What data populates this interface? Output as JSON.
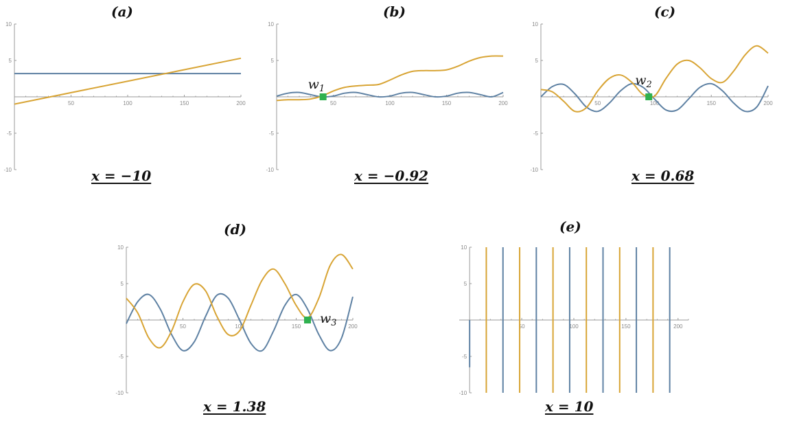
{
  "colors": {
    "blue": "#5e81a3",
    "orange": "#d8a434",
    "marker": "#2fb14f",
    "axis": "#9a9a9a"
  },
  "chart_data": [
    {
      "id": "a",
      "type": "line",
      "title": "(a)",
      "caption": "x = −10",
      "xlim": [
        0,
        200
      ],
      "ylim": [
        -10,
        10
      ],
      "xticks": [
        50,
        100,
        150,
        200
      ],
      "yticks": [
        -10,
        -5,
        5,
        10
      ],
      "series": [
        {
          "color": "blue",
          "x": [
            0,
            200
          ],
          "y": [
            3.2,
            3.2
          ]
        },
        {
          "color": "orange",
          "x": [
            0,
            200
          ],
          "y": [
            -1.0,
            5.3
          ]
        }
      ]
    },
    {
      "id": "b",
      "type": "line",
      "title": "(b)",
      "caption": "x = −0.92",
      "xlim": [
        0,
        200
      ],
      "ylim": [
        -10,
        10
      ],
      "xticks": [
        50,
        100,
        150,
        200
      ],
      "yticks": [
        -10,
        -5,
        5,
        10
      ],
      "series": [
        {
          "color": "blue",
          "x": [
            0,
            10,
            20,
            30,
            40,
            50,
            60,
            70,
            80,
            90,
            100,
            110,
            120,
            130,
            140,
            150,
            160,
            170,
            180,
            190,
            200
          ],
          "y": [
            0.1,
            0.5,
            0.6,
            0.3,
            0.0,
            0.1,
            0.5,
            0.6,
            0.3,
            0.0,
            0.1,
            0.5,
            0.6,
            0.3,
            0.0,
            0.1,
            0.5,
            0.6,
            0.3,
            0.0,
            0.6
          ]
        },
        {
          "color": "orange",
          "x": [
            0,
            10,
            20,
            30,
            40,
            50,
            60,
            70,
            80,
            90,
            100,
            110,
            120,
            130,
            140,
            150,
            160,
            170,
            180,
            190,
            200
          ],
          "y": [
            -0.5,
            -0.4,
            -0.4,
            -0.3,
            0.1,
            0.8,
            1.3,
            1.5,
            1.6,
            1.7,
            2.3,
            3.0,
            3.5,
            3.6,
            3.6,
            3.7,
            4.2,
            4.9,
            5.4,
            5.6,
            5.6
          ]
        }
      ],
      "marker": {
        "label": "w",
        "sub": "1",
        "x": 41,
        "y": 0
      }
    },
    {
      "id": "c",
      "type": "line",
      "title": "(c)",
      "caption": "x = 0.68",
      "xlim": [
        0,
        200
      ],
      "ylim": [
        -10,
        10
      ],
      "xticks": [
        50,
        100,
        150,
        200
      ],
      "yticks": [
        -10,
        -5,
        5,
        10
      ],
      "series": [
        {
          "color": "blue",
          "x": [
            0,
            10,
            20,
            30,
            40,
            50,
            60,
            70,
            80,
            90,
            100,
            110,
            120,
            130,
            140,
            150,
            160,
            170,
            180,
            190,
            200
          ],
          "y": [
            0.0,
            1.4,
            1.7,
            0.4,
            -1.4,
            -2.0,
            -0.9,
            0.8,
            1.8,
            1.3,
            -0.3,
            -1.8,
            -1.8,
            -0.3,
            1.3,
            1.8,
            0.8,
            -0.9,
            -2.0,
            -1.4,
            1.5
          ]
        },
        {
          "color": "orange",
          "x": [
            0,
            10,
            20,
            30,
            40,
            50,
            60,
            70,
            80,
            90,
            100,
            110,
            120,
            130,
            140,
            150,
            160,
            170,
            180,
            190,
            200
          ],
          "y": [
            1.0,
            0.7,
            -0.6,
            -2.0,
            -1.5,
            0.8,
            2.5,
            3.0,
            2.0,
            0.3,
            0.1,
            2.5,
            4.5,
            5.0,
            4.0,
            2.5,
            2.0,
            3.6,
            5.8,
            7.0,
            6.0
          ]
        }
      ],
      "marker": {
        "label": "w",
        "sub": "2",
        "x": 95,
        "y": 0
      }
    },
    {
      "id": "d",
      "type": "line",
      "title": "(d)",
      "caption": "x = 1.38",
      "xlim": [
        0,
        200
      ],
      "ylim": [
        -10,
        10
      ],
      "xticks": [
        50,
        100,
        150,
        200
      ],
      "yticks": [
        -10,
        -5,
        5,
        10
      ],
      "series": [
        {
          "color": "blue",
          "x": [
            0,
            10,
            20,
            30,
            40,
            50,
            60,
            70,
            80,
            90,
            100,
            110,
            120,
            130,
            140,
            150,
            160,
            170,
            180,
            190,
            200
          ],
          "y": [
            -0.5,
            2.5,
            3.5,
            1.5,
            -2.0,
            -4.2,
            -3.0,
            0.5,
            3.4,
            3.0,
            0.0,
            -3.2,
            -4.2,
            -1.5,
            2.0,
            3.5,
            1.5,
            -2.0,
            -4.2,
            -2.5,
            3.2
          ]
        },
        {
          "color": "orange",
          "x": [
            0,
            10,
            20,
            30,
            40,
            50,
            60,
            70,
            80,
            90,
            100,
            110,
            120,
            130,
            140,
            150,
            160,
            170,
            180,
            190,
            200
          ],
          "y": [
            3.0,
            1.0,
            -2.5,
            -3.8,
            -1.5,
            2.5,
            4.9,
            4.0,
            0.5,
            -2.0,
            -1.5,
            2.0,
            5.5,
            7.0,
            5.0,
            2.0,
            0.3,
            3.0,
            7.5,
            9.0,
            7.0
          ]
        }
      ],
      "marker": {
        "label": "w",
        "sub": "3",
        "x": 160,
        "y": 0
      }
    },
    {
      "id": "e",
      "type": "line",
      "title": "(e)",
      "caption": "x = 10",
      "xlim": [
        -10,
        210
      ],
      "ylim": [
        -10,
        10
      ],
      "xticks": [
        50,
        100,
        150,
        200
      ],
      "yticks": [
        -10,
        -5,
        5,
        10
      ],
      "vlines": [
        {
          "color": "orange",
          "x": [
            16,
            80,
            112,
            144,
            176
          ]
        },
        {
          "color": "orange",
          "x": [
            48
          ]
        },
        {
          "color": "blue",
          "x": [
            32,
            64,
            96,
            128,
            160,
            192
          ]
        }
      ],
      "origin_stub": {
        "color": "blue",
        "x": 0,
        "y": [
          -6.5,
          0
        ]
      }
    }
  ]
}
